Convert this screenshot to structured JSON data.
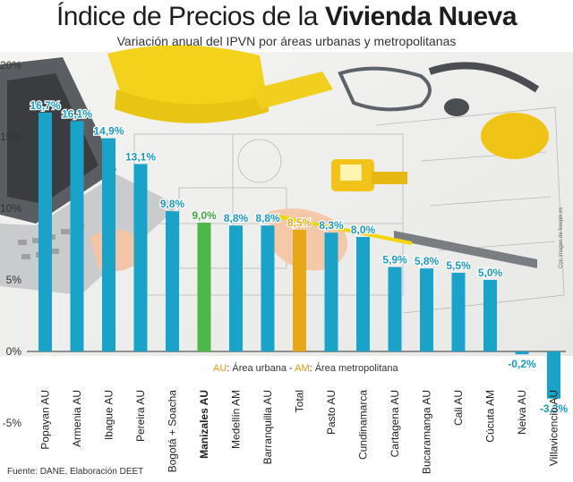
{
  "header": {
    "title_regular": "Índice de Precios de la ",
    "title_bold": "Vivienda Nueva",
    "subtitle": "Variación anual del IPVN por áreas urbanas y metropolitanas"
  },
  "legend": {
    "au_key": "AU",
    "au_text": ": Área urbana - ",
    "am_key": "AM",
    "am_text": ": Área metropolitana"
  },
  "source": "Fuente: DANE, Elaboración DEET",
  "image_credit": "Con imagen de freepik.es",
  "colors": {
    "default_bar": "#1aa3c8",
    "highlight_bar": "#4cb848",
    "total_bar": "#e6a817",
    "label_default": "#1a9bc3",
    "label_highlight": "#3aa83a",
    "label_total": "#e6a817"
  },
  "chart_data": {
    "type": "bar",
    "title": "Índice de Precios de la Vivienda Nueva",
    "subtitle": "Variación anual del IPVN por áreas urbanas y metropolitanas",
    "categories": [
      "Popayan AU",
      "Armenia AU",
      "Ibague AU",
      "Pereira AU",
      "Bogotá + Soacha",
      "Manizales AU",
      "Medellín AM",
      "Barranquilla AU",
      "Total",
      "Pasto AU",
      "Cundinamarca",
      "Cartagena AU",
      "Bucaramanga AU",
      "Cali AU",
      "Cúcuta AM",
      "Neiva AU",
      "Villavicencio AU"
    ],
    "values": [
      16.7,
      16.1,
      14.9,
      13.1,
      9.8,
      9.0,
      8.8,
      8.8,
      8.5,
      8.3,
      8.0,
      5.9,
      5.8,
      5.5,
      5.0,
      -0.2,
      -3.3
    ],
    "value_labels": [
      "16,7%",
      "16,1%",
      "14,9%",
      "13,1%",
      "9,8%",
      "9,0%",
      "8,8%",
      "8,8%",
      "8,5%",
      "8,3%",
      "8,0%",
      "5,9%",
      "5,8%",
      "5,5%",
      "5,0%",
      "-0,2%",
      "-3,3%"
    ],
    "highlight": {
      "Manizales AU": "highlight",
      "Total": "total"
    },
    "ylim": [
      -5,
      20
    ],
    "yticks": [
      -5,
      0,
      5,
      10,
      15,
      20
    ],
    "ytick_labels": [
      "-5%",
      "0%",
      "5%",
      "10%",
      "15%",
      "20%"
    ],
    "xlabel": "",
    "ylabel": "",
    "grid": false
  }
}
